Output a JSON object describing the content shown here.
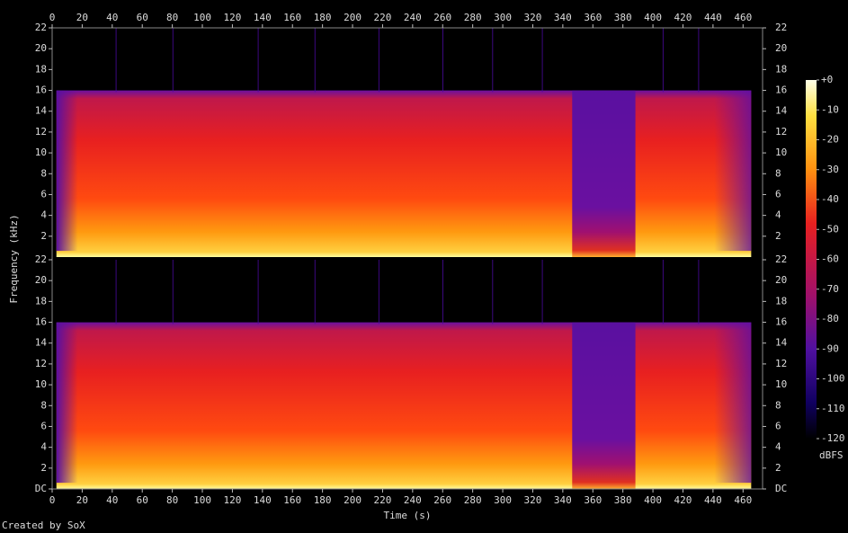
{
  "chart_data": {
    "type": "spectrogram",
    "xlabel": "Time (s)",
    "ylabel": "Frequency (kHz)",
    "xlim": [
      0,
      473
    ],
    "xticks": [
      0,
      20,
      40,
      60,
      80,
      100,
      120,
      140,
      160,
      180,
      200,
      220,
      240,
      260,
      280,
      300,
      320,
      340,
      360,
      380,
      400,
      420,
      440,
      460
    ],
    "channels": [
      {
        "ylim": [
          0,
          22
        ],
        "yticks": [
          2,
          4,
          6,
          8,
          10,
          12,
          14,
          16,
          18,
          20,
          22
        ]
      },
      {
        "ylim": [
          0,
          22
        ],
        "yticks": [
          {
            "value": 0,
            "label": "DC"
          },
          2,
          4,
          6,
          8,
          10,
          12,
          14,
          16,
          18,
          20,
          22
        ]
      }
    ],
    "colorbar": {
      "label": "dBFS",
      "lim": [
        -120,
        0
      ],
      "ticks": [
        {
          "value": 0,
          "label": "+0"
        },
        -10,
        -20,
        -30,
        -40,
        -50,
        -60,
        -70,
        -80,
        -90,
        -100,
        -110,
        -120
      ]
    },
    "credit": "Created by SoX"
  }
}
